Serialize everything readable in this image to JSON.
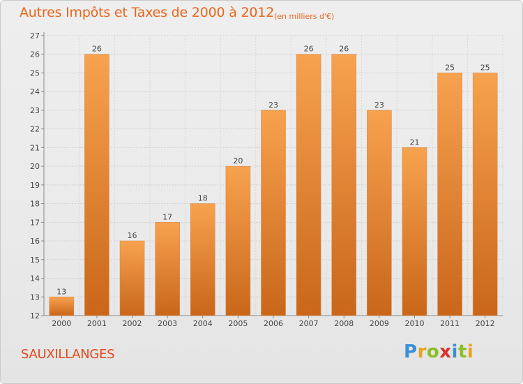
{
  "title": "Autres Impôts et Taxes de 2000 à 2012",
  "subtitle": "(en milliers d'€)",
  "place_label": "SAUXILLANGES",
  "logo": {
    "letters": [
      "P",
      "r",
      "o",
      "x",
      "i",
      "t",
      "i"
    ],
    "colors": [
      "#3a8fd6",
      "#e8a21c",
      "#8bbf2a",
      "#d8322e",
      "#3a8fd6",
      "#8bbf2a",
      "#e8a21c"
    ]
  },
  "colors": {
    "bar_top": "#f7a24f",
    "bar_bottom": "#c9661a",
    "title": "#e8651c",
    "place": "#e04a1c"
  },
  "chart_data": {
    "type": "bar",
    "categories": [
      "2000",
      "2001",
      "2002",
      "2003",
      "2004",
      "2005",
      "2006",
      "2007",
      "2008",
      "2009",
      "2010",
      "2011",
      "2012"
    ],
    "values": [
      13,
      26,
      16,
      17,
      18,
      20,
      23,
      26,
      26,
      23,
      21,
      25,
      25
    ],
    "ylim": [
      12,
      27
    ],
    "yticks": [
      12,
      13,
      14,
      15,
      16,
      17,
      18,
      19,
      20,
      21,
      22,
      23,
      24,
      25,
      26,
      27
    ],
    "grid": true,
    "legend": "none"
  }
}
